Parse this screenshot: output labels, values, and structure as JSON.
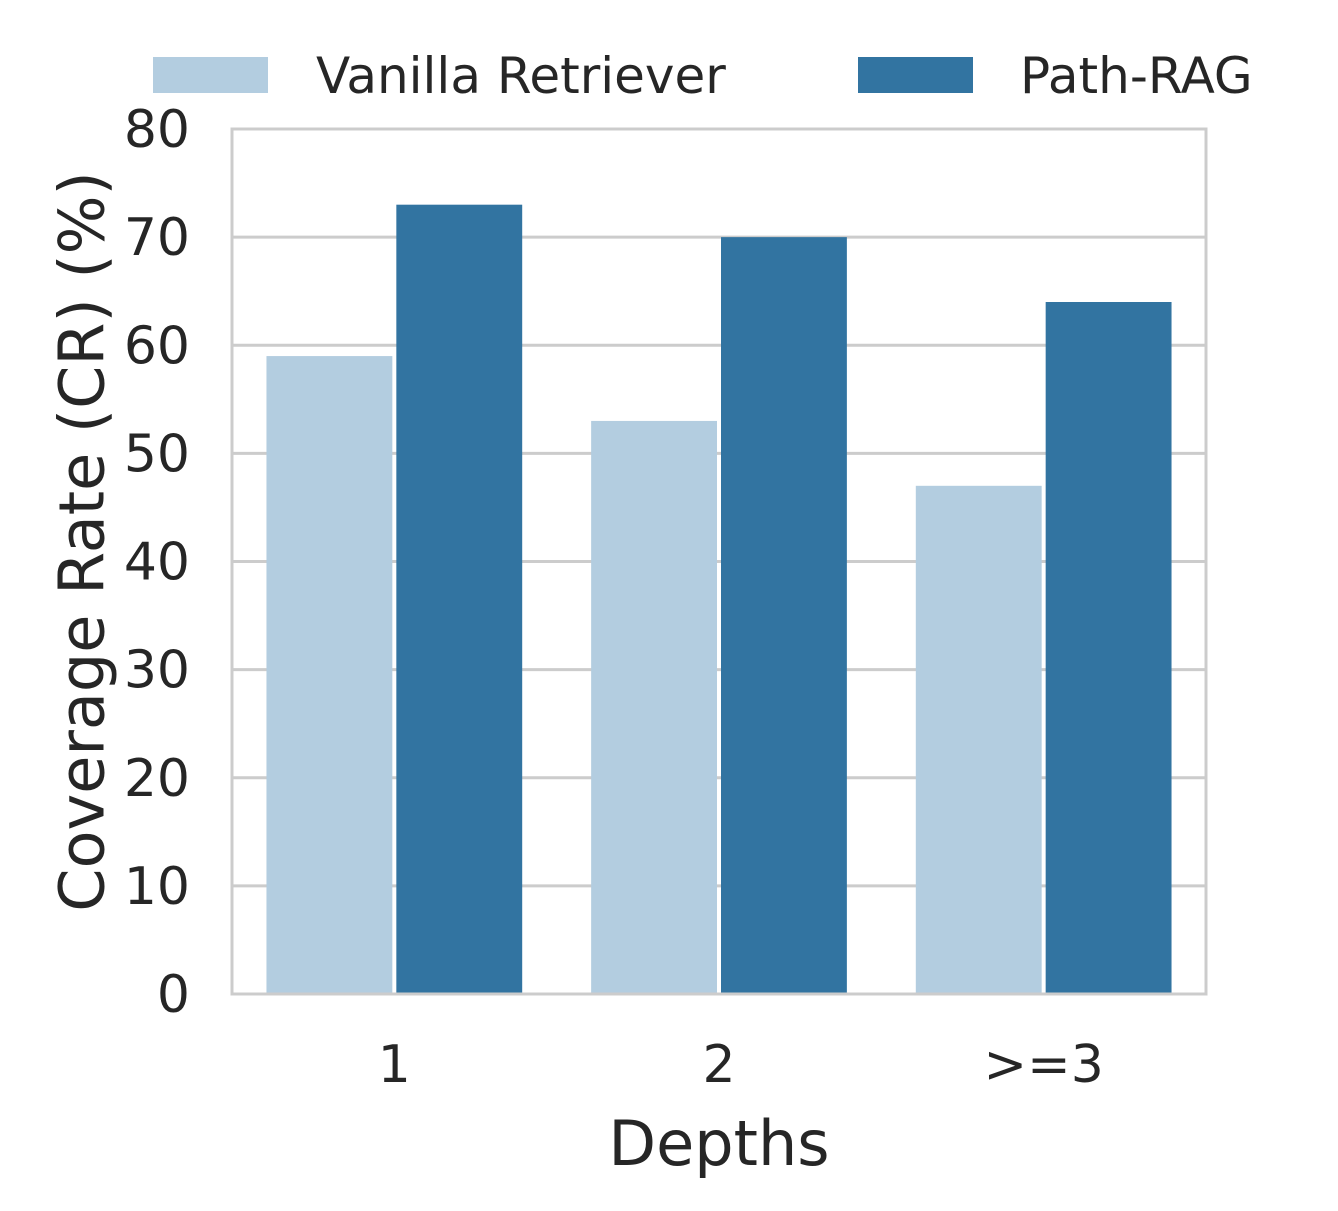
{
  "chart_data": {
    "type": "bar",
    "categories": [
      "1",
      "2",
      ">=3"
    ],
    "series": [
      {
        "name": "Vanilla Retriever",
        "values": [
          59,
          53,
          47
        ],
        "color": "#b3cde0"
      },
      {
        "name": "Path-RAG",
        "values": [
          73,
          70,
          64
        ],
        "color": "#3274a1"
      }
    ],
    "xlabel": "Depths",
    "ylabel": "Coverage Rate (CR) (%)",
    "ylim": [
      0,
      80
    ],
    "yticks": [
      0,
      10,
      20,
      30,
      40,
      50,
      60,
      70,
      80
    ],
    "grid": "horizontal",
    "legend_position": "top"
  },
  "colors": {
    "grid": "#cccccc",
    "frame": "#cccccc",
    "text": "#262626"
  }
}
